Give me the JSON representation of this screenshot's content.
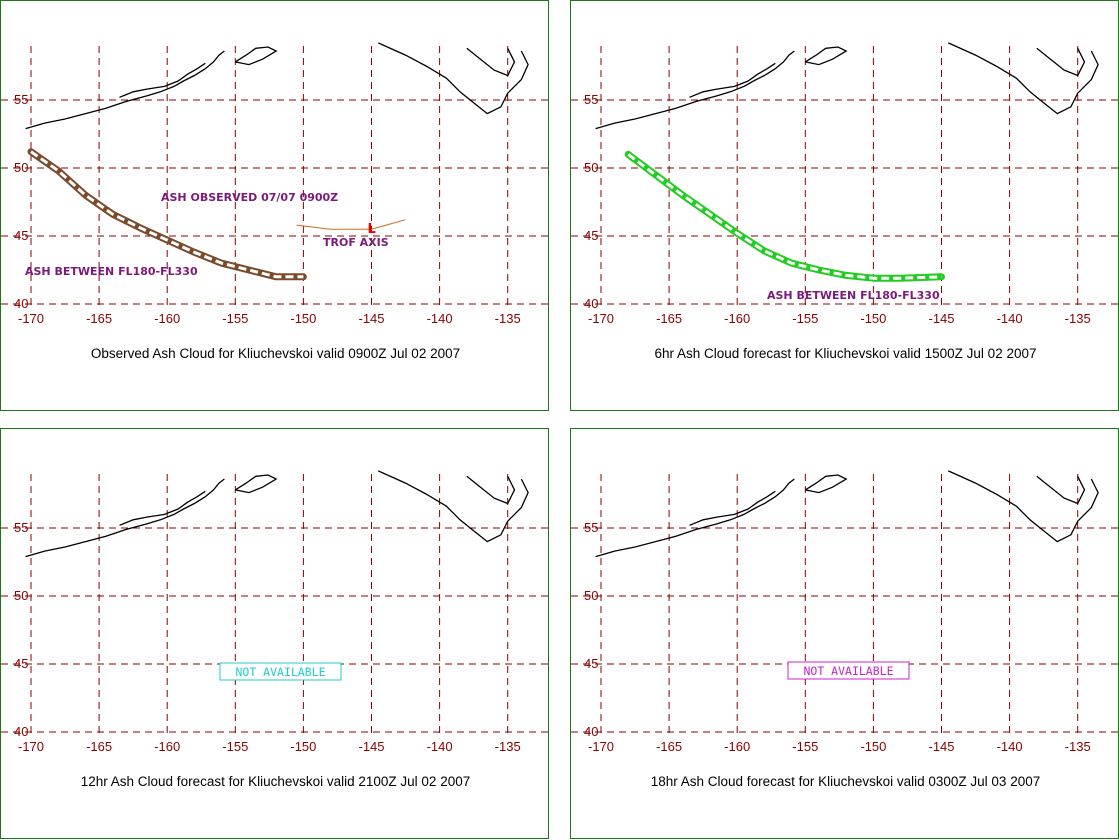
{
  "grid": {
    "lon_ticks": [
      "-170",
      "-165",
      "-160",
      "-155",
      "-150",
      "-145",
      "-140",
      "-135"
    ],
    "lat_ticks": [
      "55",
      "50",
      "45",
      "40"
    ],
    "grid_color": "#8b0000",
    "coast_color": "#000000"
  },
  "panels": [
    {
      "caption": "Observed Ash Cloud for Kliuchevskoi valid 0900Z Jul 02 2007",
      "cloud_color": "#7a4a2a",
      "cloud_points": [
        [
          -170,
          51.2
        ],
        [
          -168,
          49.8
        ],
        [
          -166,
          48.0
        ],
        [
          -164,
          46.6
        ],
        [
          -162,
          45.6
        ],
        [
          -160,
          44.7
        ],
        [
          -158,
          43.8
        ],
        [
          -156,
          43.0
        ],
        [
          -154,
          42.5
        ],
        [
          -152,
          42.0
        ],
        [
          -150,
          42.0
        ]
      ],
      "labels": {
        "ash_observed": "ASH OBSERVED 07/07 0900Z",
        "ash_between": "ASH BETWEEN FL180-FL330",
        "trof_axis": "TROF AXIS",
        "low_marker": "L"
      },
      "trof_color": "#d2691e",
      "trof_points": [
        [
          -150.5,
          45.8
        ],
        [
          -148,
          45.5
        ],
        [
          -145,
          45.5
        ],
        [
          -142.5,
          46.2
        ]
      ],
      "low_point": [
        -145,
        45.6
      ]
    },
    {
      "caption": "6hr Ash Cloud forecast for Kliuchevskoi valid 1500Z Jul 02 2007",
      "cloud_color": "#22cc22",
      "cloud_points": [
        [
          -168,
          51.0
        ],
        [
          -166,
          49.5
        ],
        [
          -164,
          48.0
        ],
        [
          -162,
          46.6
        ],
        [
          -160,
          45.2
        ],
        [
          -158,
          43.9
        ],
        [
          -156,
          43.0
        ],
        [
          -154,
          42.5
        ],
        [
          -152,
          42.1
        ],
        [
          -150,
          41.9
        ],
        [
          -148,
          41.9
        ],
        [
          -145,
          42.0
        ]
      ],
      "labels": {
        "ash_between": "ASH BETWEEN FL180-FL330"
      }
    },
    {
      "caption": "12hr Ash Cloud forecast for Kliuchevskoi valid 2100Z Jul 02 2007",
      "not_available": "NOT AVAILABLE",
      "na_color": "#22cccc"
    },
    {
      "caption": "18hr Ash Cloud forecast for Kliuchevskoi valid 0300Z Jul 03 2007",
      "not_available": "NOT AVAILABLE",
      "na_color": "#cc22cc"
    }
  ]
}
